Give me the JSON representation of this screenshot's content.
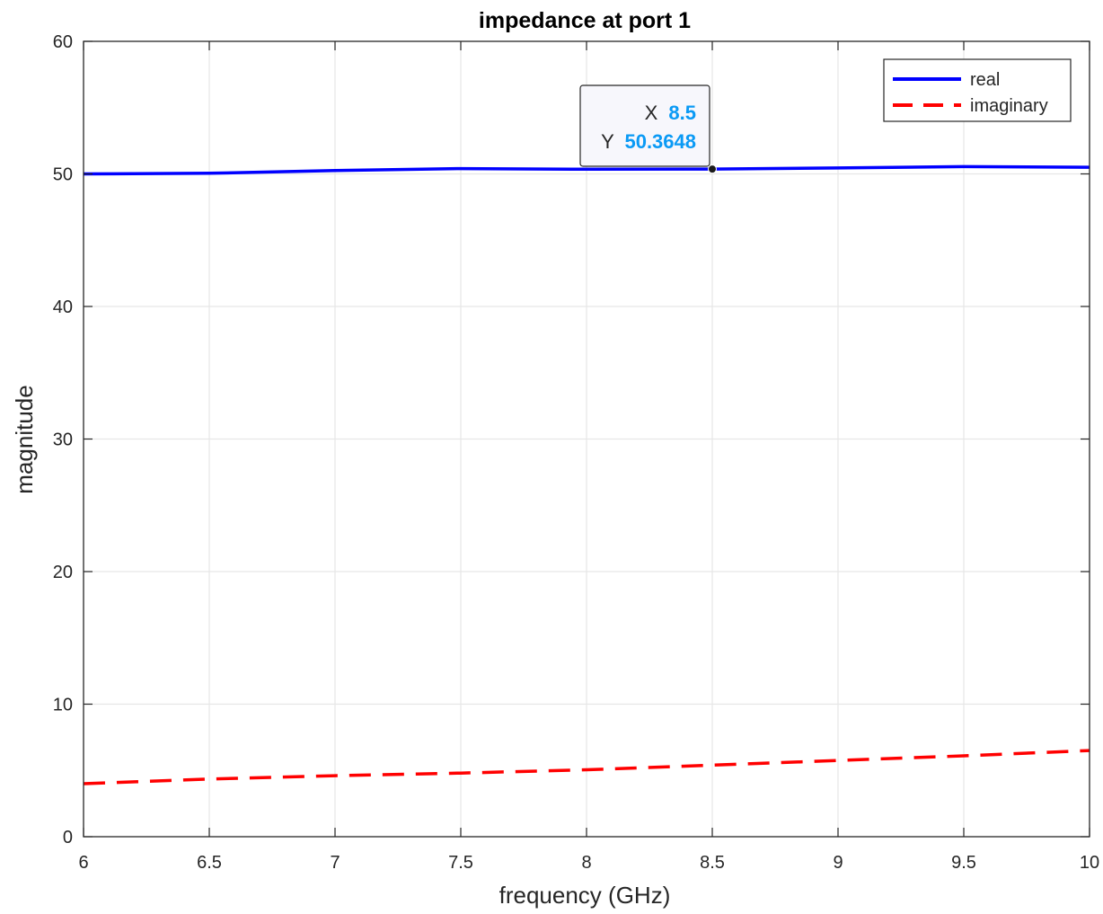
{
  "chart_data": {
    "type": "line",
    "title": "impedance at port  1",
    "xlabel": "frequency (GHz)",
    "ylabel": "magnitude",
    "xlim": [
      6,
      10
    ],
    "ylim": [
      0,
      60
    ],
    "xticks": [
      6,
      6.5,
      7,
      7.5,
      8,
      8.5,
      9,
      9.5,
      10
    ],
    "xtick_labels": [
      "6",
      "6.5",
      "7",
      "7.5",
      "8",
      "8.5",
      "9",
      "9.5",
      "10"
    ],
    "yticks": [
      0,
      10,
      20,
      30,
      40,
      50,
      60
    ],
    "ytick_labels": [
      "0",
      "10",
      "20",
      "30",
      "40",
      "50",
      "60"
    ],
    "grid": true,
    "legend_position": "top-right",
    "series": [
      {
        "name": "real",
        "color": "#0000ff",
        "style": "solid",
        "x": [
          6,
          6.5,
          7,
          7.5,
          8,
          8.5,
          9,
          9.5,
          10
        ],
        "values": [
          50.0,
          50.05,
          50.25,
          50.4,
          50.35,
          50.3648,
          50.45,
          50.55,
          50.5
        ]
      },
      {
        "name": "imaginary",
        "color": "#ff0000",
        "style": "dashed",
        "x": [
          6,
          6.5,
          7,
          7.5,
          8,
          8.5,
          9,
          9.5,
          10
        ],
        "values": [
          4.0,
          4.35,
          4.6,
          4.8,
          5.05,
          5.4,
          5.75,
          6.1,
          6.5
        ]
      }
    ],
    "datatip": {
      "x_label": "X",
      "x_value": "8.5",
      "y_label": "Y",
      "y_value": "50.3648",
      "x": 8.5,
      "y": 50.3648
    }
  },
  "colors": {
    "axes": "#262626",
    "grid": "#e6e6e6",
    "datatip_value": "#0a9af5",
    "datatip_bg": "#f7f7fc"
  }
}
